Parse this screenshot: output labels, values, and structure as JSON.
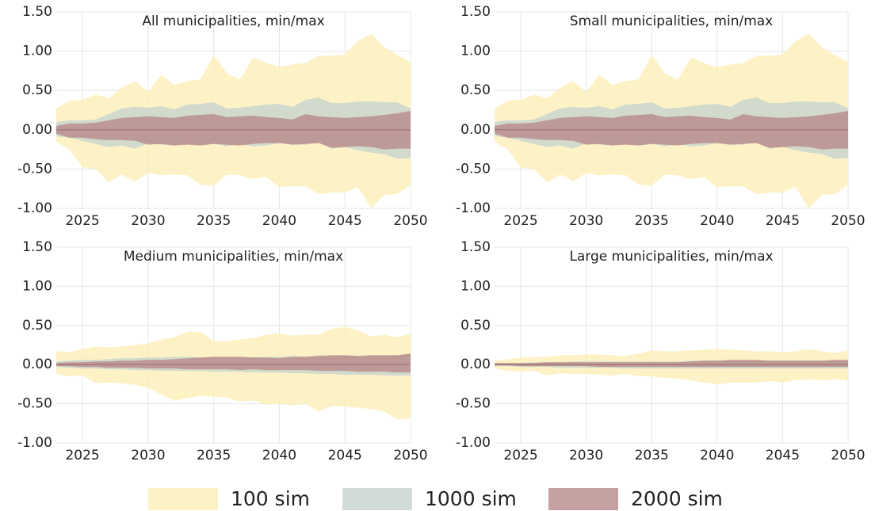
{
  "chart_data": [
    {
      "type": "band",
      "title": "All municipalities, min/max",
      "x": [
        2023,
        2024,
        2025,
        2026,
        2027,
        2028,
        2029,
        2030,
        2031,
        2032,
        2033,
        2034,
        2035,
        2036,
        2037,
        2038,
        2039,
        2040,
        2041,
        2042,
        2043,
        2044,
        2045,
        2046,
        2047,
        2048,
        2049,
        2050
      ],
      "xlim": [
        2023,
        2050
      ],
      "xticks": [
        2025,
        2030,
        2035,
        2040,
        2045,
        2050
      ],
      "ylim": [
        -1,
        1.5
      ],
      "yticks": [
        {
          "value": -1,
          "label": "-1.00"
        },
        {
          "value": -0.5,
          "label": "-0.50"
        },
        {
          "value": 0,
          "label": "0.00"
        },
        {
          "value": 0.5,
          "label": "0.50"
        },
        {
          "value": 1,
          "label": "1.00"
        },
        {
          "value": 1.5,
          "label": "1.50"
        }
      ],
      "grid": true,
      "reference_line": 0,
      "series": [
        {
          "upper": [
            0.27,
            0.37,
            0.38,
            0.45,
            0.4,
            0.53,
            0.62,
            0.48,
            0.7,
            0.57,
            0.62,
            0.64,
            0.95,
            0.72,
            0.64,
            0.92,
            0.85,
            0.8,
            0.83,
            0.85,
            0.94,
            0.94,
            0.96,
            1.13,
            1.22,
            1.05,
            0.95,
            0.86
          ],
          "lower": [
            -0.15,
            -0.25,
            -0.48,
            -0.5,
            -0.67,
            -0.57,
            -0.66,
            -0.55,
            -0.58,
            -0.57,
            -0.58,
            -0.7,
            -0.71,
            -0.57,
            -0.58,
            -0.63,
            -0.6,
            -0.73,
            -0.72,
            -0.72,
            -0.82,
            -0.8,
            -0.8,
            -0.73,
            -1.0,
            -0.83,
            -0.82,
            -0.7
          ]
        },
        {
          "upper": [
            0.1,
            0.12,
            0.12,
            0.13,
            0.2,
            0.27,
            0.29,
            0.28,
            0.3,
            0.26,
            0.32,
            0.33,
            0.35,
            0.27,
            0.28,
            0.3,
            0.32,
            0.33,
            0.29,
            0.38,
            0.41,
            0.34,
            0.34,
            0.36,
            0.36,
            0.35,
            0.35,
            0.27
          ],
          "lower": [
            -0.08,
            -0.1,
            -0.14,
            -0.18,
            -0.22,
            -0.2,
            -0.24,
            -0.17,
            -0.19,
            -0.2,
            -0.17,
            -0.2,
            -0.18,
            -0.21,
            -0.18,
            -0.21,
            -0.2,
            -0.17,
            -0.19,
            -0.19,
            -0.16,
            -0.24,
            -0.22,
            -0.26,
            -0.29,
            -0.31,
            -0.37,
            -0.36
          ]
        },
        {
          "upper": [
            0.05,
            0.08,
            0.08,
            0.09,
            0.12,
            0.15,
            0.16,
            0.17,
            0.16,
            0.15,
            0.18,
            0.19,
            0.2,
            0.16,
            0.17,
            0.18,
            0.16,
            0.15,
            0.13,
            0.2,
            0.17,
            0.16,
            0.15,
            0.16,
            0.17,
            0.19,
            0.21,
            0.24
          ],
          "lower": [
            -0.05,
            -0.1,
            -0.1,
            -0.12,
            -0.13,
            -0.13,
            -0.14,
            -0.19,
            -0.18,
            -0.2,
            -0.19,
            -0.2,
            -0.18,
            -0.19,
            -0.2,
            -0.18,
            -0.17,
            -0.17,
            -0.19,
            -0.18,
            -0.17,
            -0.23,
            -0.22,
            -0.21,
            -0.22,
            -0.25,
            -0.24,
            -0.24
          ]
        }
      ]
    },
    {
      "type": "band",
      "title": "Small municipalities, min/max",
      "x": [
        2023,
        2024,
        2025,
        2026,
        2027,
        2028,
        2029,
        2030,
        2031,
        2032,
        2033,
        2034,
        2035,
        2036,
        2037,
        2038,
        2039,
        2040,
        2041,
        2042,
        2043,
        2044,
        2045,
        2046,
        2047,
        2048,
        2049,
        2050
      ],
      "xlim": [
        2023,
        2050
      ],
      "xticks": [
        2025,
        2030,
        2035,
        2040,
        2045,
        2050
      ],
      "ylim": [
        -1,
        1.5
      ],
      "yticks": [
        {
          "value": -1,
          "label": "-1.00"
        },
        {
          "value": -0.5,
          "label": "-0.50"
        },
        {
          "value": 0,
          "label": "0.00"
        },
        {
          "value": 0.5,
          "label": "0.50"
        },
        {
          "value": 1,
          "label": "1.00"
        },
        {
          "value": 1.5,
          "label": "1.50"
        }
      ],
      "grid": true,
      "reference_line": 0,
      "series": [
        {
          "upper": [
            0.27,
            0.37,
            0.38,
            0.45,
            0.4,
            0.53,
            0.62,
            0.48,
            0.7,
            0.57,
            0.62,
            0.64,
            0.95,
            0.72,
            0.64,
            0.92,
            0.85,
            0.8,
            0.83,
            0.85,
            0.94,
            0.94,
            0.96,
            1.13,
            1.22,
            1.05,
            0.95,
            0.86
          ],
          "lower": [
            -0.15,
            -0.25,
            -0.48,
            -0.5,
            -0.67,
            -0.57,
            -0.66,
            -0.55,
            -0.58,
            -0.57,
            -0.58,
            -0.7,
            -0.71,
            -0.57,
            -0.58,
            -0.63,
            -0.6,
            -0.73,
            -0.72,
            -0.72,
            -0.82,
            -0.8,
            -0.8,
            -0.73,
            -1.0,
            -0.83,
            -0.82,
            -0.7
          ]
        },
        {
          "upper": [
            0.1,
            0.12,
            0.12,
            0.13,
            0.2,
            0.27,
            0.29,
            0.28,
            0.3,
            0.26,
            0.32,
            0.33,
            0.35,
            0.27,
            0.28,
            0.3,
            0.32,
            0.33,
            0.29,
            0.38,
            0.41,
            0.34,
            0.34,
            0.36,
            0.36,
            0.35,
            0.35,
            0.27
          ],
          "lower": [
            -0.08,
            -0.1,
            -0.14,
            -0.18,
            -0.22,
            -0.2,
            -0.24,
            -0.17,
            -0.19,
            -0.2,
            -0.17,
            -0.2,
            -0.18,
            -0.21,
            -0.18,
            -0.21,
            -0.2,
            -0.17,
            -0.19,
            -0.19,
            -0.16,
            -0.24,
            -0.22,
            -0.26,
            -0.29,
            -0.31,
            -0.37,
            -0.36
          ]
        },
        {
          "upper": [
            0.05,
            0.08,
            0.08,
            0.09,
            0.12,
            0.15,
            0.16,
            0.17,
            0.16,
            0.15,
            0.18,
            0.19,
            0.2,
            0.16,
            0.17,
            0.18,
            0.16,
            0.15,
            0.13,
            0.2,
            0.17,
            0.16,
            0.15,
            0.16,
            0.17,
            0.19,
            0.21,
            0.24
          ],
          "lower": [
            -0.05,
            -0.1,
            -0.1,
            -0.12,
            -0.13,
            -0.13,
            -0.14,
            -0.19,
            -0.18,
            -0.2,
            -0.19,
            -0.2,
            -0.18,
            -0.19,
            -0.2,
            -0.18,
            -0.17,
            -0.17,
            -0.19,
            -0.18,
            -0.17,
            -0.23,
            -0.22,
            -0.21,
            -0.22,
            -0.25,
            -0.24,
            -0.24
          ]
        }
      ]
    },
    {
      "type": "band",
      "title": "Medium municipalities, min/max",
      "x": [
        2023,
        2024,
        2025,
        2026,
        2027,
        2028,
        2029,
        2030,
        2031,
        2032,
        2033,
        2034,
        2035,
        2036,
        2037,
        2038,
        2039,
        2040,
        2041,
        2042,
        2043,
        2044,
        2045,
        2046,
        2047,
        2048,
        2049,
        2050
      ],
      "xlim": [
        2023,
        2050
      ],
      "xticks": [
        2025,
        2030,
        2035,
        2040,
        2045,
        2050
      ],
      "ylim": [
        -1,
        1.5
      ],
      "yticks": [
        {
          "value": -1,
          "label": "-1.00"
        },
        {
          "value": -0.5,
          "label": "-0.50"
        },
        {
          "value": 0,
          "label": "0.00"
        },
        {
          "value": 0.5,
          "label": "0.50"
        },
        {
          "value": 1,
          "label": "1.00"
        },
        {
          "value": 1.5,
          "label": "1.50"
        }
      ],
      "grid": true,
      "reference_line": 0,
      "series": [
        {
          "upper": [
            0.17,
            0.16,
            0.2,
            0.23,
            0.22,
            0.23,
            0.25,
            0.27,
            0.32,
            0.35,
            0.42,
            0.42,
            0.3,
            0.3,
            0.32,
            0.34,
            0.38,
            0.4,
            0.37,
            0.38,
            0.38,
            0.46,
            0.48,
            0.44,
            0.36,
            0.38,
            0.35,
            0.39
          ],
          "lower": [
            -0.12,
            -0.15,
            -0.14,
            -0.24,
            -0.23,
            -0.24,
            -0.26,
            -0.3,
            -0.38,
            -0.46,
            -0.43,
            -0.4,
            -0.41,
            -0.42,
            -0.47,
            -0.46,
            -0.51,
            -0.5,
            -0.52,
            -0.5,
            -0.6,
            -0.53,
            -0.54,
            -0.55,
            -0.57,
            -0.6,
            -0.7,
            -0.69
          ]
        },
        {
          "upper": [
            0.04,
            0.05,
            0.06,
            0.06,
            0.07,
            0.08,
            0.08,
            0.09,
            0.09,
            0.1,
            0.1,
            0.09,
            0.1,
            0.1,
            0.1,
            0.09,
            0.1,
            0.1,
            0.11,
            0.1,
            0.12,
            0.11,
            0.12,
            0.11,
            0.12,
            0.12,
            0.12,
            0.13
          ],
          "lower": [
            -0.03,
            -0.04,
            -0.05,
            -0.05,
            -0.06,
            -0.06,
            -0.07,
            -0.07,
            -0.08,
            -0.08,
            -0.08,
            -0.08,
            -0.09,
            -0.09,
            -0.09,
            -0.1,
            -0.1,
            -0.1,
            -0.11,
            -0.11,
            -0.12,
            -0.12,
            -0.13,
            -0.13,
            -0.13,
            -0.14,
            -0.14,
            -0.14
          ]
        },
        {
          "upper": [
            0.02,
            0.03,
            0.03,
            0.04,
            0.04,
            0.05,
            0.05,
            0.06,
            0.06,
            0.07,
            0.08,
            0.09,
            0.1,
            0.1,
            0.1,
            0.09,
            0.09,
            0.08,
            0.1,
            0.1,
            0.11,
            0.12,
            0.12,
            0.11,
            0.12,
            0.12,
            0.12,
            0.14
          ],
          "lower": [
            -0.02,
            -0.02,
            -0.03,
            -0.03,
            -0.04,
            -0.04,
            -0.04,
            -0.05,
            -0.05,
            -0.05,
            -0.06,
            -0.06,
            -0.06,
            -0.06,
            -0.07,
            -0.06,
            -0.07,
            -0.07,
            -0.07,
            -0.07,
            -0.08,
            -0.08,
            -0.08,
            -0.09,
            -0.09,
            -0.09,
            -0.1,
            -0.1
          ]
        }
      ]
    },
    {
      "type": "band",
      "title": "Large municipalities, min/max",
      "x": [
        2023,
        2024,
        2025,
        2026,
        2027,
        2028,
        2029,
        2030,
        2031,
        2032,
        2033,
        2034,
        2035,
        2036,
        2037,
        2038,
        2039,
        2040,
        2041,
        2042,
        2043,
        2044,
        2045,
        2046,
        2047,
        2048,
        2049,
        2050
      ],
      "xlim": [
        2023,
        2050
      ],
      "xticks": [
        2025,
        2030,
        2035,
        2040,
        2045,
        2050
      ],
      "ylim": [
        -1,
        1.5
      ],
      "yticks": [
        {
          "value": -1,
          "label": "-1.00"
        },
        {
          "value": -0.5,
          "label": "-0.50"
        },
        {
          "value": 0,
          "label": "0.00"
        },
        {
          "value": 0.5,
          "label": "0.50"
        },
        {
          "value": 1,
          "label": "1.00"
        },
        {
          "value": 1.5,
          "label": "1.50"
        }
      ],
      "grid": true,
      "reference_line": 0,
      "series": [
        {
          "upper": [
            0.05,
            0.07,
            0.09,
            0.1,
            0.1,
            0.12,
            0.12,
            0.13,
            0.13,
            0.12,
            0.11,
            0.14,
            0.18,
            0.17,
            0.17,
            0.18,
            0.19,
            0.2,
            0.19,
            0.18,
            0.17,
            0.17,
            0.16,
            0.17,
            0.2,
            0.17,
            0.15,
            0.18
          ],
          "lower": [
            -0.05,
            -0.08,
            -0.09,
            -0.08,
            -0.14,
            -0.11,
            -0.12,
            -0.12,
            -0.13,
            -0.14,
            -0.12,
            -0.15,
            -0.15,
            -0.17,
            -0.18,
            -0.2,
            -0.23,
            -0.25,
            -0.23,
            -0.23,
            -0.23,
            -0.21,
            -0.23,
            -0.2,
            -0.19,
            -0.2,
            -0.19,
            -0.2
          ]
        },
        {
          "upper": [
            0.02,
            0.02,
            0.02,
            0.03,
            0.03,
            0.03,
            0.04,
            0.04,
            0.04,
            0.04,
            0.04,
            0.04,
            0.04,
            0.04,
            0.04,
            0.05,
            0.05,
            0.05,
            0.05,
            0.05,
            0.05,
            0.05,
            0.05,
            0.05,
            0.05,
            0.05,
            0.05,
            0.05
          ],
          "lower": [
            -0.02,
            -0.02,
            -0.03,
            -0.03,
            -0.03,
            -0.04,
            -0.04,
            -0.04,
            -0.04,
            -0.04,
            -0.05,
            -0.05,
            -0.05,
            -0.05,
            -0.05,
            -0.05,
            -0.05,
            -0.05,
            -0.05,
            -0.05,
            -0.05,
            -0.05,
            -0.05,
            -0.05,
            -0.05,
            -0.05,
            -0.05,
            -0.05
          ]
        },
        {
          "upper": [
            0.02,
            0.02,
            0.02,
            0.02,
            0.03,
            0.03,
            0.03,
            0.03,
            0.03,
            0.03,
            0.03,
            0.03,
            0.03,
            0.03,
            0.03,
            0.04,
            0.05,
            0.05,
            0.06,
            0.06,
            0.06,
            0.05,
            0.05,
            0.05,
            0.05,
            0.05,
            0.06,
            0.06
          ],
          "lower": [
            -0.01,
            -0.01,
            -0.02,
            -0.02,
            -0.02,
            -0.02,
            -0.02,
            -0.02,
            -0.03,
            -0.03,
            -0.03,
            -0.03,
            -0.03,
            -0.03,
            -0.03,
            -0.03,
            -0.03,
            -0.03,
            -0.03,
            -0.03,
            -0.03,
            -0.03,
            -0.03,
            -0.03,
            -0.03,
            -0.03,
            -0.03,
            -0.03
          ]
        }
      ]
    }
  ],
  "legend": {
    "position": "bottom",
    "entries": [
      {
        "name": "100 sim",
        "color": "#fcefb8"
      },
      {
        "name": "1000 sim",
        "color": "#c5d3cd"
      },
      {
        "name": "2000 sim",
        "color": "#b88a89"
      }
    ]
  }
}
